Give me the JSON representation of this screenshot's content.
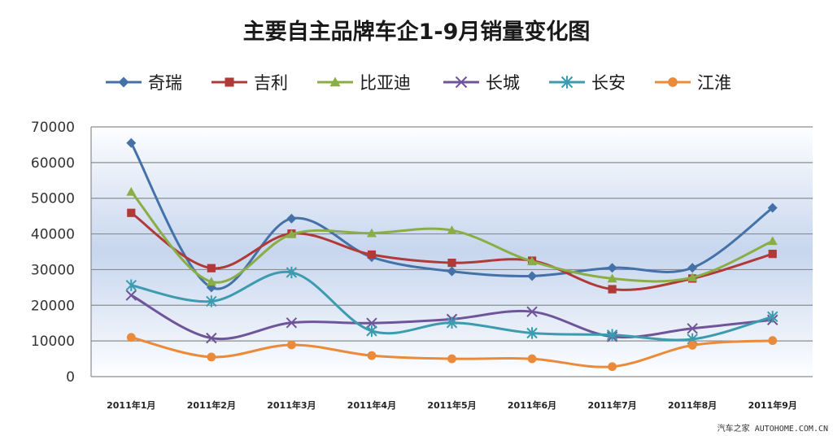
{
  "chart_data": {
    "type": "line",
    "title": "主要自主品牌车企1-9月销量变化图",
    "xlabel": "",
    "ylabel": "",
    "categories": [
      "2011年1月",
      "2011年2月",
      "2011年3月",
      "2011年4月",
      "2011年5月",
      "2011年6月",
      "2011年7月",
      "2011年8月",
      "2011年9月"
    ],
    "ylim": [
      0,
      70000
    ],
    "yticks": [
      "70000",
      "60000",
      "50000",
      "40000",
      "30000",
      "20000",
      "10000",
      "0"
    ],
    "grid": true,
    "legend_position": "top",
    "series": [
      {
        "name": "奇瑞",
        "color": "#4472A8",
        "marker": "diamond",
        "values": [
          65500,
          25000,
          44300,
          33500,
          29500,
          28200,
          30500,
          30500,
          47300
        ]
      },
      {
        "name": "吉利",
        "color": "#B03A37",
        "marker": "square",
        "values": [
          45900,
          30400,
          40100,
          34200,
          31900,
          32500,
          24500,
          27500,
          34400
        ]
      },
      {
        "name": "比亚迪",
        "color": "#8AAE45",
        "marker": "triangle",
        "values": [
          51800,
          26600,
          39900,
          40200,
          41000,
          32300,
          27500,
          27800,
          38000
        ]
      },
      {
        "name": "长城",
        "color": "#70549A",
        "marker": "x",
        "values": [
          22800,
          10800,
          15100,
          15000,
          16100,
          18200,
          11200,
          13500,
          15900
        ]
      },
      {
        "name": "长安",
        "color": "#3C9BAE",
        "marker": "star",
        "values": [
          25600,
          21100,
          29200,
          12800,
          15100,
          12200,
          11700,
          10500,
          16800
        ]
      },
      {
        "name": "江淮",
        "color": "#EB8B3A",
        "marker": "circle",
        "values": [
          11000,
          5500,
          8900,
          5900,
          5000,
          5000,
          2800,
          8800,
          10100
        ]
      }
    ]
  },
  "watermark": "汽车之家 AUTOHOME.COM.CN"
}
